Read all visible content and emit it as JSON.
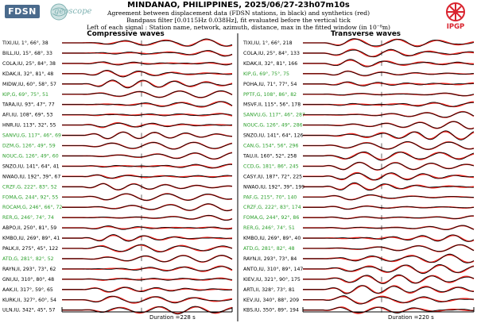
{
  "header": {
    "title": "MINDANAO, PHILIPPINES, 2025/06/27-23h07m10s",
    "line1": "Agreement between displacement data (FDSN stations, in black) and synthetics (red)",
    "line2": "Bandpass filter [0.0115Hz 0.038Hz], fit evaluated before the vertical tick",
    "line3": "Left of each signal : Station name, network, azimuth, distance, max in the fitted window (in 10⁻⁸m)"
  },
  "logos": {
    "fdsn": "FDSN",
    "geoscope": "geoscope",
    "ipgp": "IPGP"
  },
  "colors": {
    "data": "#000000",
    "synthetic": "#e8231c",
    "good_fit_label": "#2ca02c",
    "normal_label": "#000000"
  },
  "chart_data": [
    {
      "type": "line",
      "title": "Compressive waves",
      "duration_label": "Duration =228 s",
      "stations": [
        {
          "label": "TIXI,IU, 1°, 66°, 38",
          "good": false
        },
        {
          "label": "BILL,IU, 15°, 68°, 33",
          "good": false
        },
        {
          "label": "COLA,IU, 25°, 84°, 38",
          "good": false
        },
        {
          "label": "KDAK,II, 32°, 81°, 48",
          "good": false
        },
        {
          "label": "MIDW,IU, 60°, 58°, 57",
          "good": false
        },
        {
          "label": "KIP,G, 69°, 75°, 51",
          "good": true
        },
        {
          "label": "TARA,IU, 93°, 47°, 77",
          "good": false
        },
        {
          "label": "AFI,IU, 108°, 69°, 53",
          "good": false
        },
        {
          "label": "HNR,IU, 113°, 32°, 55",
          "good": false
        },
        {
          "label": "SANVU,G, 117°, 46°, 69",
          "good": true
        },
        {
          "label": "DZM,G, 126°, 49°, 59",
          "good": true
        },
        {
          "label": "NOUC,G, 126°, 49°, 60",
          "good": true
        },
        {
          "label": "SNZO,IU, 141°, 64°, 41",
          "good": false
        },
        {
          "label": "NWAO,IU, 192°, 39°, 67",
          "good": false
        },
        {
          "label": "CRZF,G, 222°, 83°, 52",
          "good": true
        },
        {
          "label": "FOMA,G, 244°, 92°, 55",
          "good": true
        },
        {
          "label": "ROCAM,G, 246°, 66°, 72",
          "good": true
        },
        {
          "label": "RER,G, 246°, 74°, 74",
          "good": true
        },
        {
          "label": "ABPO,II, 250°, 81°, 59",
          "good": false
        },
        {
          "label": "KMBO,IU, 269°, 89°, 41",
          "good": false
        },
        {
          "label": "PALK,II, 275°, 45°, 122",
          "good": false
        },
        {
          "label": "ATD,G, 281°, 82°, 52",
          "good": true
        },
        {
          "label": "RAYN,II, 293°, 73°, 62",
          "good": false
        },
        {
          "label": "GNI,IU, 310°, 80°, 48",
          "good": false
        },
        {
          "label": "AAK,II, 317°, 59°, 65",
          "good": false
        },
        {
          "label": "KURK,II, 327°, 60°, 54",
          "good": false
        },
        {
          "label": "ULN,IU, 342°, 45°, 57",
          "good": false
        }
      ]
    },
    {
      "type": "line",
      "title": "Transverse waves",
      "duration_label": "Duration =220 s",
      "stations": [
        {
          "label": "TIXI,IU, 1°, 66°, 218",
          "good": false
        },
        {
          "label": "COLA,IU, 25°, 84°, 133",
          "good": false
        },
        {
          "label": "KDAK,II, 32°, 81°, 166",
          "good": false
        },
        {
          "label": "KIP,G, 69°, 75°, 75",
          "good": true
        },
        {
          "label": "POHA,IU, 71°, 77°, 54",
          "good": false
        },
        {
          "label": "PPTF,G, 108°, 86°, 82",
          "good": true
        },
        {
          "label": "MSVF,II, 115°, 56°, 178",
          "good": false
        },
        {
          "label": "SANVU,G, 117°, 46°, 287",
          "good": true
        },
        {
          "label": "NOUC,G, 126°, 49°, 286",
          "good": true
        },
        {
          "label": "SNZO,IU, 141°, 64°, 126",
          "good": false
        },
        {
          "label": "CAN,G, 154°, 56°, 296",
          "good": true
        },
        {
          "label": "TAU,II, 160°, 52°, 258",
          "good": false
        },
        {
          "label": "CCD,G, 181°, 86°, 245",
          "good": true
        },
        {
          "label": "CASY,IU, 187°, 72°, 225",
          "good": false
        },
        {
          "label": "NWAO,IU, 192°, 39°, 199",
          "good": false
        },
        {
          "label": "PAF,G, 215°, 70°, 140",
          "good": true
        },
        {
          "label": "CRZF,G, 222°, 83°, 174",
          "good": true
        },
        {
          "label": "FOMA,G, 244°, 92°, 86",
          "good": true
        },
        {
          "label": "RER,G, 246°, 74°, 51",
          "good": true
        },
        {
          "label": "KMBO,IU, 269°, 89°, 40",
          "good": false
        },
        {
          "label": "ATD,G, 281°, 82°, 48",
          "good": true
        },
        {
          "label": "RAYN,II, 293°, 73°, 84",
          "good": false
        },
        {
          "label": "ANTO,IU, 310°, 89°, 147",
          "good": false
        },
        {
          "label": "KIEV,IU, 321°, 90°, 175",
          "good": false
        },
        {
          "label": "ARTI,II, 328°, 73°, 81",
          "good": false
        },
        {
          "label": "KEV,IU, 340°, 88°, 209",
          "good": false
        },
        {
          "label": "KBS,IU, 350°, 89°, 194",
          "good": false
        }
      ]
    }
  ]
}
